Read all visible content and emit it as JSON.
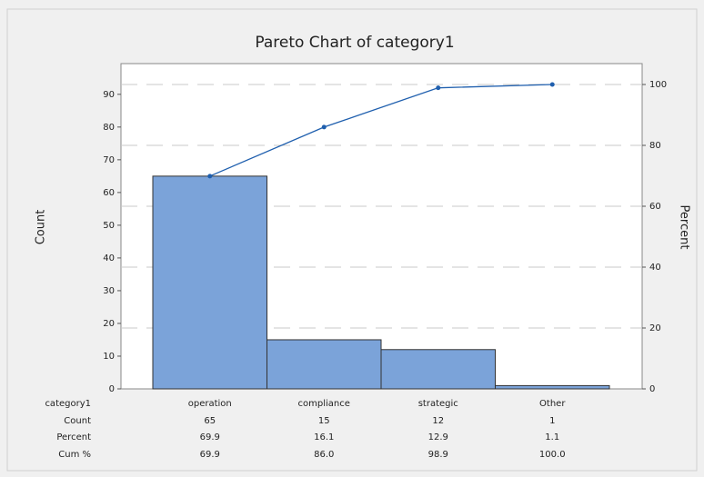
{
  "chart_data": {
    "type": "pareto",
    "title": "Pareto Chart of category1",
    "categories": [
      "operation",
      "compliance",
      "strategic",
      "Other"
    ],
    "series": [
      {
        "name": "Count",
        "color": "#7ba3d9",
        "values": [
          65,
          15,
          12,
          1
        ]
      },
      {
        "name": "Cum %",
        "color": "#1f5fae",
        "axis": "y2",
        "values": [
          69.9,
          86.0,
          98.9,
          100.0
        ],
        "value_labels": [
          "69.9",
          "86.0",
          "98.9",
          "100.0"
        ]
      }
    ],
    "percent": [
      69.9,
      16.1,
      12.9,
      1.1
    ],
    "x_label": "category1",
    "ylabel": "Count",
    "y2label": "Percent",
    "percent_row_label": "Percent",
    "ylim": [
      0,
      93
    ],
    "yticks": [
      0,
      10,
      20,
      30,
      40,
      50,
      60,
      70,
      80,
      90
    ],
    "y2lim": [
      0,
      100
    ],
    "y2ticks": [
      0,
      20,
      40,
      60,
      80,
      100
    ],
    "grid": true
  }
}
